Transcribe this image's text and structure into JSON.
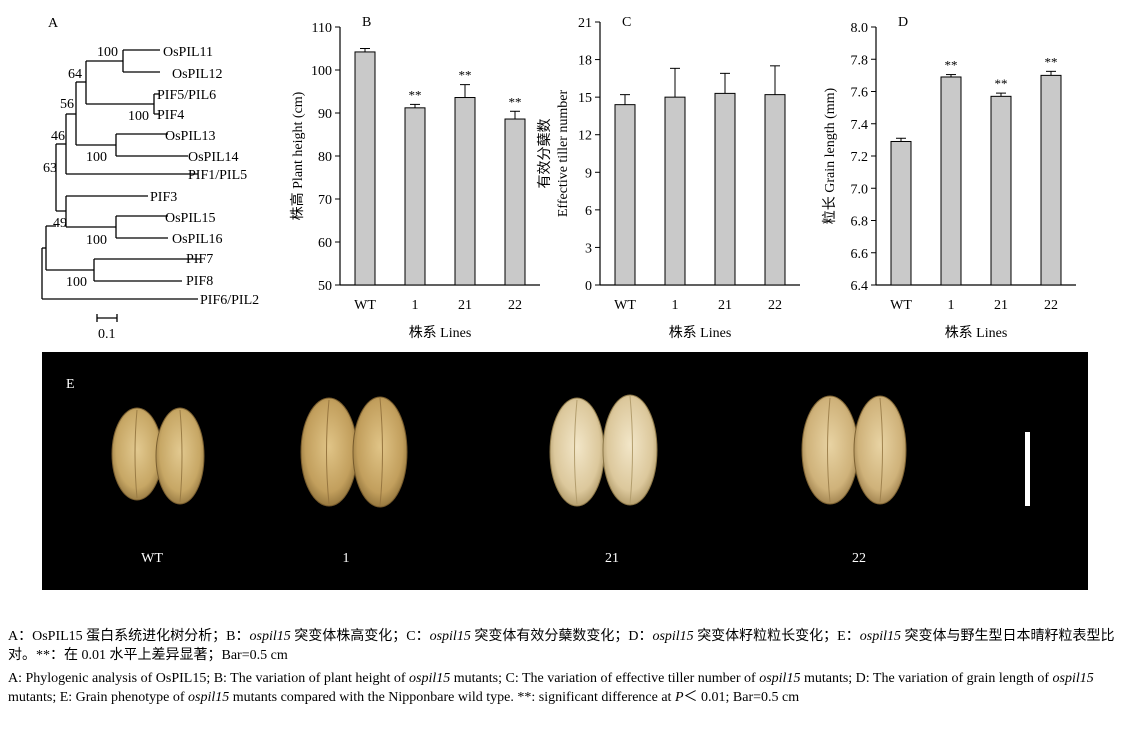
{
  "panel_labels": {
    "a": "A",
    "b": "B",
    "c": "C",
    "d": "D",
    "e": "E"
  },
  "tree": {
    "taxa": [
      "OsPIL11",
      "OsPIL12",
      "PIF5/PIL6",
      "PIF4",
      "OsPIL13",
      "OsPIL14",
      "PIF1/PIL5",
      "PIF3",
      "OsPIL15",
      "OsPIL16",
      "PIF7",
      "PIF8",
      "PIF6/PIL2"
    ],
    "bootstrap": [
      "100",
      "64",
      "100",
      "56",
      "46",
      "100",
      "63",
      "49",
      "100",
      "100"
    ],
    "scale_label": "0.1"
  },
  "chart_data": [
    {
      "type": "bar",
      "panel": "B",
      "categories": [
        "WT",
        "1",
        "21",
        "22"
      ],
      "values": [
        104.2,
        91.2,
        93.6,
        88.6
      ],
      "errors": [
        0.8,
        0.8,
        3.0,
        1.8
      ],
      "significance": [
        "",
        "**",
        "**",
        "**"
      ],
      "ylabel": "株高 Plant height (cm)",
      "xlabel": "株系 Lines",
      "ylim": [
        50,
        110
      ],
      "yticks": [
        "50",
        "60",
        "70",
        "80",
        "90",
        "100",
        "110"
      ]
    },
    {
      "type": "bar",
      "panel": "C",
      "categories": [
        "WT",
        "1",
        "21",
        "22"
      ],
      "values": [
        14.4,
        15.0,
        15.3,
        15.2
      ],
      "errors": [
        0.8,
        2.3,
        1.6,
        2.3
      ],
      "significance": [
        "",
        "",
        "",
        ""
      ],
      "ylabel": "有效分蘖数 Effective tiller number",
      "xlabel": "株系 Lines",
      "ylim": [
        0,
        21
      ],
      "yticks": [
        "0",
        "3",
        "6",
        "9",
        "12",
        "15",
        "18",
        "21"
      ]
    },
    {
      "type": "bar",
      "panel": "D",
      "categories": [
        "WT",
        "1",
        "21",
        "22"
      ],
      "values": [
        7.29,
        7.69,
        7.57,
        7.7
      ],
      "errors": [
        0.02,
        0.015,
        0.02,
        0.025
      ],
      "significance": [
        "",
        "**",
        "**",
        "**"
      ],
      "ylabel": "粒长 Grain length (mm)",
      "xlabel": "株系 Lines",
      "ylim": [
        6.4,
        8.0
      ],
      "yticks": [
        "6.4",
        "6.6",
        "6.8",
        "7.0",
        "7.2",
        "7.4",
        "7.6",
        "7.8",
        "8.0"
      ]
    }
  ],
  "photo": {
    "labels": [
      "WT",
      "1",
      "21",
      "22"
    ]
  },
  "caption": {
    "zh": {
      "a1": "A：OsPIL15 蛋白系统进化树分析；B：",
      "i1": "ospil15",
      "a2": " 突变体株高变化；C：",
      "i2": "ospil15",
      "a3": " 突变体有效分蘖数变化；D：",
      "i3": "ospil15",
      "a4": " 突变体籽粒粒长变化；E：",
      "i4": "ospil15",
      "a5": " 突变体与野生型日本晴籽粒表型比对。**：在 0.01 水平上差异显著；Bar=0.5 cm"
    },
    "en": {
      "a1": "A: Phylogenic analysis of OsPIL15; B: The variation of plant height of ",
      "i1": "ospil15",
      "a2": " mutants; C: The variation of effective tiller number of ",
      "i2": "ospil15",
      "a3": " mutants; D: The variation of grain length of ",
      "i3": "ospil15",
      "a4": " mutants; E: Grain phenotype of ",
      "i4": "ospil15",
      "a5": " mutants compared with the Nipponbare wild type. **: significant difference at ",
      "i5": "P",
      "a6": "＜ 0.01; Bar=0.5 cm"
    }
  }
}
